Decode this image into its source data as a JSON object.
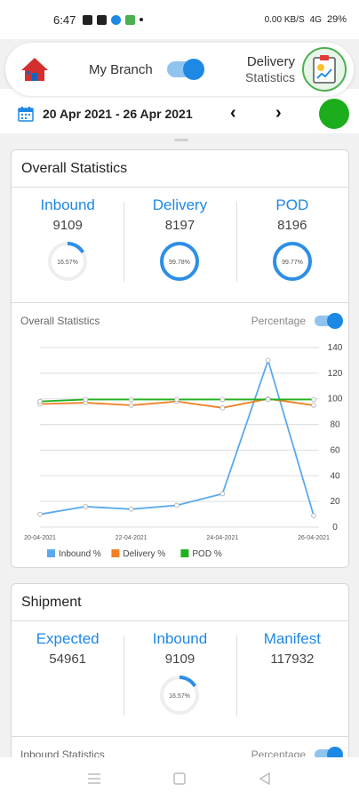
{
  "status_bar": {
    "time": "6:47",
    "net_speed": "0.00 KB/S",
    "network": "4G",
    "battery": "29%"
  },
  "app_bar": {
    "branch_label": "My Branch",
    "branch_toggle_on": true,
    "title_line1": "Delivery",
    "title_line2": "Statistics",
    "icons": {
      "home": "home-icon",
      "report": "clipboard-chart-icon"
    }
  },
  "date_bar": {
    "range": "20 Apr 2021 - 26 Apr 2021",
    "prev": "‹",
    "next": "›",
    "status_color": "#1cad1c"
  },
  "overall": {
    "title": "Overall Statistics",
    "stats": [
      {
        "label": "Inbound",
        "value": "9109",
        "pct_label": "16.57%",
        "pct": 16.57
      },
      {
        "label": "Delivery",
        "value": "8197",
        "pct_label": "99.78%",
        "pct": 99.78
      },
      {
        "label": "POD",
        "value": "8196",
        "pct_label": "99.77%",
        "pct": 99.77
      }
    ],
    "chart_title": "Overall Statistics",
    "percentage_label": "Percentage",
    "percentage_toggle_on": true
  },
  "shipment": {
    "title": "Shipment",
    "stats": [
      {
        "label": "Expected",
        "value": "54961"
      },
      {
        "label": "Inbound",
        "value": "9109",
        "pct_label": "16.57%",
        "pct": 16.57
      },
      {
        "label": "Manifest",
        "value": "117932"
      }
    ],
    "sub_title": "Inbound Statistics",
    "percentage_label": "Percentage"
  },
  "chart_data": {
    "type": "line",
    "x": [
      "20-04-2021",
      "21-04-2021",
      "22-04-2021",
      "23-04-2021",
      "24-04-2021",
      "25-04-2021",
      "26-04-2021"
    ],
    "x_tick_labels": [
      "20-04-2021",
      "22-04-2021",
      "24-04-2021",
      "26-04-2021"
    ],
    "y_ticks": [
      0,
      20,
      40,
      60,
      80,
      100,
      120,
      140
    ],
    "ylim": [
      0,
      140
    ],
    "series": [
      {
        "name": "Inbound %",
        "color": "#5aa9ee",
        "values": [
          10,
          16,
          14,
          17,
          26,
          130,
          9
        ]
      },
      {
        "name": "Delivery %",
        "color": "#f28022",
        "values": [
          96,
          97,
          95,
          98,
          93,
          100,
          95
        ]
      },
      {
        "name": "POD %",
        "color": "#21b11f",
        "values": [
          98,
          99.5,
          99.5,
          99.5,
          99.5,
          99.5,
          99.5
        ]
      }
    ]
  }
}
